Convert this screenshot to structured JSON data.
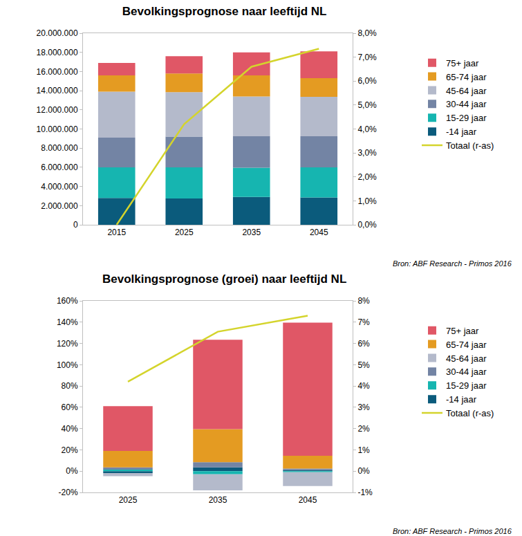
{
  "chart_data": [
    {
      "type": "bar",
      "title": "Bevolkingsprognose naar leeftijd NL",
      "annotations": [
        "Bron: ABF Research - Primos 2016"
      ],
      "categories": [
        "2015",
        "2025",
        "2035",
        "2045"
      ],
      "stacked": true,
      "grid": false,
      "legend": "right",
      "series": [
        {
          "name": "-14 jaar",
          "color": "#0b5b7c",
          "values": [
            2800000,
            2750000,
            2900000,
            2850000
          ]
        },
        {
          "name": "15-29 jaar",
          "color": "#16b5b0",
          "values": [
            3200000,
            3250000,
            3050000,
            3150000
          ]
        },
        {
          "name": "30-44 jaar",
          "color": "#7384a4",
          "values": [
            3100000,
            3200000,
            3300000,
            3250000
          ]
        },
        {
          "name": "45-64 jaar",
          "color": "#b4bacb",
          "values": [
            4800000,
            4650000,
            4150000,
            4100000
          ]
        },
        {
          "name": "65-74 jaar",
          "color": "#e49b22",
          "values": [
            1700000,
            1950000,
            2200000,
            1950000
          ]
        },
        {
          "name": "75+ jaar",
          "color": "#e05766",
          "values": [
            1300000,
            1800000,
            2400000,
            2800000
          ]
        },
        {
          "name": "Totaal (r-as)",
          "color": "#d4d42c",
          "type": "line",
          "axis": "y2",
          "values": [
            0.0,
            4.2,
            6.6,
            7.35
          ]
        }
      ],
      "ylim": [
        0,
        20000000
      ],
      "yticks": [
        0,
        {
          "value": 2000000,
          "label": "2.000.000"
        },
        {
          "value": 4000000,
          "label": "4.000.000"
        },
        {
          "value": 6000000,
          "label": "6.000.000"
        },
        {
          "value": 8000000,
          "label": "8.000.000"
        },
        {
          "value": 10000000,
          "label": "10.000.000"
        },
        {
          "value": 12000000,
          "label": "12.000.000"
        },
        {
          "value": 14000000,
          "label": "14.000.000"
        },
        {
          "value": 16000000,
          "label": "16.000.000"
        },
        {
          "value": 18000000,
          "label": "18.000.000"
        },
        {
          "value": 20000000,
          "label": "20.000.000"
        }
      ],
      "y2lim": [
        0,
        8
      ],
      "y2ticks": [
        {
          "value": 0,
          "label": "0,0%"
        },
        {
          "value": 1,
          "label": "1,0%"
        },
        {
          "value": 2,
          "label": "2,0%"
        },
        {
          "value": 3,
          "label": "3,0%"
        },
        {
          "value": 4,
          "label": "4,0%"
        },
        {
          "value": 5,
          "label": "5,0%"
        },
        {
          "value": 6,
          "label": "6,0%"
        },
        {
          "value": 7,
          "label": "7,0%"
        },
        {
          "value": 8,
          "label": "8,0%"
        }
      ]
    },
    {
      "type": "bar",
      "title": "Bevolkingsprognose (groei) naar leeftijd NL",
      "annotations": [
        "Bron: ABF Research - Primos 2016"
      ],
      "categories": [
        "2025",
        "2035",
        "2045"
      ],
      "stacked": true,
      "grid": false,
      "legend": "right",
      "series": [
        {
          "name": "-14 jaar",
          "color": "#0b5b7c",
          "values": [
            -1.8,
            3.5,
            1
          ]
        },
        {
          "name": "15-29 jaar",
          "color": "#16b5b0",
          "values": [
            1.5,
            -3,
            -1
          ]
        },
        {
          "name": "30-44 jaar",
          "color": "#7384a4",
          "values": [
            2,
            5,
            1.5
          ]
        },
        {
          "name": "45-64 jaar",
          "color": "#b4bacb",
          "values": [
            -3,
            -15,
            -13
          ]
        },
        {
          "name": "65-74 jaar",
          "color": "#e49b22",
          "values": [
            15.5,
            31,
            12
          ]
        },
        {
          "name": "75+ jaar",
          "color": "#e05766",
          "values": [
            42,
            84,
            125
          ]
        },
        {
          "name": "Totaal (r-as)",
          "color": "#d4d42c",
          "type": "line",
          "axis": "y2",
          "values": [
            4.2,
            6.55,
            7.3
          ]
        }
      ],
      "ylim": [
        -20,
        160
      ],
      "yticks": [
        {
          "value": -20,
          "label": "-20%"
        },
        {
          "value": 0,
          "label": "0%"
        },
        {
          "value": 20,
          "label": "20%"
        },
        {
          "value": 40,
          "label": "40%"
        },
        {
          "value": 60,
          "label": "60%"
        },
        {
          "value": 80,
          "label": "80%"
        },
        {
          "value": 100,
          "label": "100%"
        },
        {
          "value": 120,
          "label": "120%"
        },
        {
          "value": 140,
          "label": "140%"
        },
        {
          "value": 160,
          "label": "160%"
        }
      ],
      "y2lim": [
        -1,
        8
      ],
      "y2ticks": [
        {
          "value": -1,
          "label": "-1%"
        },
        {
          "value": 0,
          "label": "0%"
        },
        {
          "value": 1,
          "label": "1%"
        },
        {
          "value": 2,
          "label": "2%"
        },
        {
          "value": 3,
          "label": "3%"
        },
        {
          "value": 4,
          "label": "4%"
        },
        {
          "value": 5,
          "label": "5%"
        },
        {
          "value": 6,
          "label": "6%"
        },
        {
          "value": 7,
          "label": "7%"
        },
        {
          "value": 8,
          "label": "8%"
        }
      ]
    }
  ]
}
